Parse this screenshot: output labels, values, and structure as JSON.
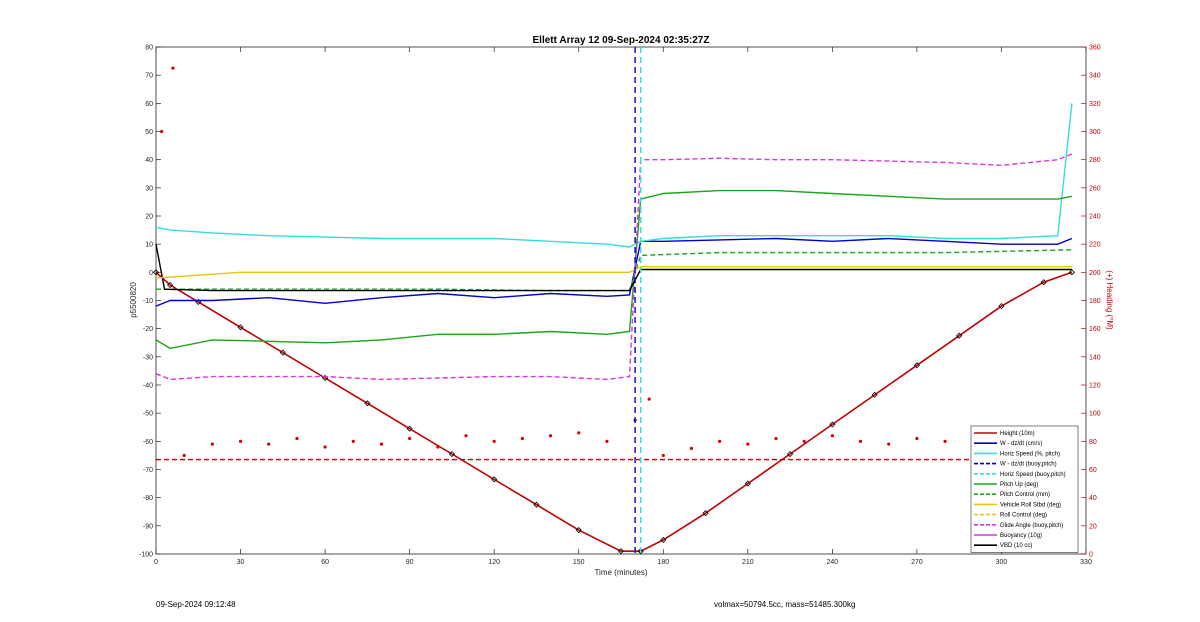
{
  "footer": {
    "timestamp": "09-Sep-2024 09:12:48",
    "volmax": "volmax=50794.5cc, mass=51485.300kg"
  },
  "chart_data": {
    "type": "line",
    "title": "Ellett Array 12 09-Sep-2024 02:35:27Z",
    "xlabel": "Time (minutes)",
    "ylabel": "p5500820",
    "ylabel_right": "(+) Heading (°M)",
    "xlim": [
      0,
      330
    ],
    "ylim": [
      -100,
      80
    ],
    "ylim_right": [
      0,
      360
    ],
    "x_ticks": [
      0,
      30,
      60,
      90,
      120,
      150,
      180,
      210,
      240,
      270,
      300,
      330
    ],
    "y_ticks": [
      -100,
      -90,
      -80,
      -70,
      -60,
      -50,
      -40,
      -30,
      -20,
      -10,
      0,
      10,
      20,
      30,
      40,
      50,
      60,
      70,
      80
    ],
    "y_ticks_right": [
      0,
      20,
      40,
      60,
      80,
      100,
      120,
      140,
      160,
      180,
      200,
      220,
      240,
      260,
      280,
      300,
      320,
      340,
      360
    ],
    "grid": false,
    "legend_position": "bottom-right",
    "legend": [
      {
        "label": "Height (10m)",
        "color": "#c00000",
        "style": "solid"
      },
      {
        "label": "W - dz/dt (cm/s)",
        "color": "#0000cc",
        "style": "solid"
      },
      {
        "label": "Horiz Speed (%, pitch)",
        "color": "#33dddd",
        "style": "solid"
      },
      {
        "label": "W - dz/dt (buoy,pitch)",
        "color": "#0000cc",
        "style": "dashed"
      },
      {
        "label": "Horiz Speed (buoy,pitch)",
        "color": "#33dddd",
        "style": "dashed"
      },
      {
        "label": "Pitch Up (deg)",
        "color": "#1aa51a",
        "style": "solid"
      },
      {
        "label": "Pitch Control (mm)",
        "color": "#1aa51a",
        "style": "dashed"
      },
      {
        "label": "Vehicle Roll Stbd (deg)",
        "color": "#e6c619",
        "style": "solid"
      },
      {
        "label": "Roll Control (deg)",
        "color": "#e6c619",
        "style": "dashed"
      },
      {
        "label": "Glide Angle (buoy,pitch)",
        "color": "#dd33dd",
        "style": "dashed"
      },
      {
        "label": "Buoyancy (10g)",
        "color": "#dd33dd",
        "style": "solid"
      },
      {
        "label": "VBD (10 cc)",
        "color": "#000000",
        "style": "solid"
      }
    ],
    "series": [
      {
        "name": "Height (10m)",
        "x": [
          0,
          5,
          15,
          30,
          45,
          60,
          75,
          90,
          105,
          120,
          135,
          150,
          165,
          172,
          180,
          195,
          210,
          225,
          240,
          255,
          270,
          285,
          300,
          315,
          325
        ],
        "y": [
          0,
          -4.5,
          -10.5,
          -19.5,
          -28.5,
          -37.5,
          -46.5,
          -55.5,
          -64.5,
          -73.5,
          -82.5,
          -91.5,
          -99,
          -99,
          -95,
          -85.5,
          -75,
          -64.5,
          -54,
          -43.5,
          -33,
          -22.5,
          -12,
          -3.5,
          0
        ]
      },
      {
        "name": "W - dz/dt (cm/s)",
        "x": [
          0,
          5,
          20,
          40,
          60,
          80,
          100,
          120,
          140,
          160,
          168,
          172,
          180,
          200,
          220,
          240,
          260,
          280,
          300,
          320,
          325
        ],
        "y": [
          -12,
          -10,
          -10,
          -9,
          -11,
          -9,
          -7.5,
          -9,
          -7.5,
          -8.5,
          -8,
          11,
          11,
          11.5,
          12,
          11,
          12,
          11,
          10,
          10,
          12
        ]
      },
      {
        "name": "Horiz Speed (%, pitch)",
        "x": [
          0,
          5,
          20,
          40,
          60,
          80,
          100,
          120,
          140,
          160,
          168,
          172,
          180,
          200,
          220,
          240,
          260,
          280,
          300,
          320,
          325
        ],
        "y": [
          16,
          15,
          14,
          13,
          12.5,
          12,
          12,
          12,
          11,
          10,
          9,
          11,
          12,
          13,
          13,
          13,
          13,
          12,
          12,
          13,
          60
        ]
      },
      {
        "name": "Pitch Up (deg)",
        "x": [
          0,
          5,
          20,
          40,
          60,
          80,
          100,
          120,
          140,
          160,
          168,
          172,
          180,
          200,
          220,
          240,
          260,
          280,
          300,
          320,
          325
        ],
        "y": [
          -24,
          -27,
          -24,
          -24.5,
          -25,
          -24,
          -22,
          -22,
          -21,
          -22,
          -21,
          26,
          28,
          29,
          29,
          28,
          27,
          26,
          26,
          26,
          27
        ]
      },
      {
        "name": "Pitch Control (mm)",
        "x": [
          0,
          20,
          60,
          100,
          140,
          168,
          172,
          200,
          240,
          280,
          325
        ],
        "y": [
          -6,
          -6,
          -6,
          -6,
          -6.5,
          -6.5,
          6,
          7,
          7,
          7,
          8
        ]
      },
      {
        "name": "Glide Angle (buoy,pitch)",
        "x": [
          0,
          5,
          20,
          40,
          60,
          80,
          100,
          120,
          140,
          160,
          168,
          172,
          180,
          200,
          220,
          240,
          260,
          280,
          300,
          320,
          325
        ],
        "y": [
          -36,
          -38,
          -37,
          -37,
          -37,
          -38,
          -37.5,
          -37,
          -37,
          -38,
          -37,
          40,
          40,
          40.5,
          40,
          40,
          39.5,
          39,
          38,
          40,
          42
        ]
      },
      {
        "name": "VBD (10 cc)",
        "x": [
          0,
          3,
          20,
          60,
          100,
          140,
          168,
          172,
          200,
          240,
          280,
          325
        ],
        "y": [
          10,
          -6,
          -6.5,
          -6.5,
          -6.5,
          -6.5,
          -6.5,
          1,
          1,
          1,
          1,
          1
        ]
      },
      {
        "name": "Vehicle Roll Stbd (deg)",
        "x": [
          0,
          30,
          60,
          90,
          120,
          150,
          168,
          172,
          200,
          230,
          260,
          290,
          320,
          325
        ],
        "y": [
          -2,
          0,
          0,
          0,
          0,
          0,
          0,
          2,
          2,
          2,
          2,
          2,
          2,
          2
        ]
      },
      {
        "name": "Heading",
        "axis": "right",
        "style": "dots",
        "x": [
          2,
          6,
          10,
          20,
          30,
          40,
          50,
          60,
          70,
          80,
          90,
          100,
          110,
          120,
          130,
          140,
          150,
          160,
          170,
          175,
          180,
          190,
          200,
          210,
          220,
          230,
          240,
          250,
          260,
          270,
          280,
          290,
          300,
          310,
          320
        ],
        "y": [
          300,
          345,
          70,
          78,
          80,
          78,
          82,
          76,
          80,
          78,
          82,
          76,
          84,
          80,
          82,
          84,
          86,
          80,
          95,
          110,
          70,
          75,
          80,
          78,
          82,
          80,
          84,
          80,
          78,
          82,
          80,
          78,
          82,
          80,
          72
        ]
      },
      {
        "name": "Heading mean",
        "axis": "right",
        "style": "dashed",
        "x": [
          0,
          325
        ],
        "y": [
          67,
          67
        ]
      }
    ],
    "vline_dashed": [
      {
        "x": 170,
        "color": "#0000cc"
      },
      {
        "x": 172,
        "color": "#33dddd"
      }
    ]
  }
}
